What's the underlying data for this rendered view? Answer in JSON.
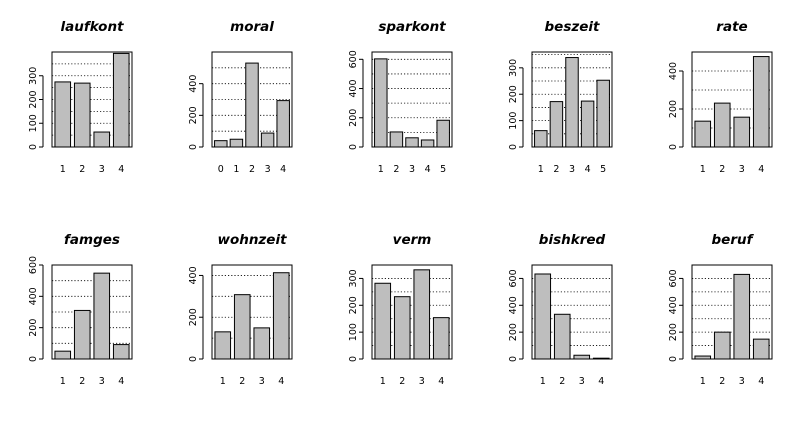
{
  "chart_data": [
    {
      "type": "bar",
      "title": "laufkont",
      "categories": [
        "1",
        "2",
        "3",
        "4"
      ],
      "values": [
        274,
        269,
        63,
        394
      ],
      "yticks": [
        0,
        100,
        200,
        300
      ],
      "ylim": [
        0,
        400
      ]
    },
    {
      "type": "bar",
      "title": "moral",
      "categories": [
        "0",
        "1",
        "2",
        "3",
        "4"
      ],
      "values": [
        40,
        49,
        530,
        88,
        293
      ],
      "yticks": [
        0,
        200,
        400
      ],
      "ylim": [
        0,
        600
      ]
    },
    {
      "type": "bar",
      "title": "sparkont",
      "categories": [
        "1",
        "2",
        "3",
        "4",
        "5"
      ],
      "values": [
        603,
        103,
        63,
        48,
        183
      ],
      "yticks": [
        0,
        200,
        400,
        600
      ],
      "ylim": [
        0,
        650
      ]
    },
    {
      "type": "bar",
      "title": "beszeit",
      "categories": [
        "1",
        "2",
        "3",
        "4",
        "5"
      ],
      "values": [
        62,
        172,
        339,
        174,
        253
      ],
      "yticks": [
        0,
        100,
        200,
        300
      ],
      "ylim": [
        0,
        360
      ]
    },
    {
      "type": "bar",
      "title": "rate",
      "categories": [
        "1",
        "2",
        "3",
        "4"
      ],
      "values": [
        136,
        231,
        157,
        476
      ],
      "yticks": [
        0,
        200,
        400
      ],
      "ylim": [
        0,
        500
      ]
    },
    {
      "type": "bar",
      "title": "famges",
      "categories": [
        "1",
        "2",
        "3",
        "4"
      ],
      "values": [
        50,
        310,
        548,
        92
      ],
      "yticks": [
        0,
        200,
        400,
        600
      ],
      "ylim": [
        0,
        600
      ]
    },
    {
      "type": "bar",
      "title": "wohnzeit",
      "categories": [
        "1",
        "2",
        "3",
        "4"
      ],
      "values": [
        130,
        308,
        149,
        413
      ],
      "yticks": [
        0,
        200,
        400
      ],
      "ylim": [
        0,
        450
      ]
    },
    {
      "type": "bar",
      "title": "verm",
      "categories": [
        "1",
        "2",
        "3",
        "4"
      ],
      "values": [
        282,
        232,
        332,
        154
      ],
      "yticks": [
        0,
        100,
        200,
        300
      ],
      "ylim": [
        0,
        350
      ]
    },
    {
      "type": "bar",
      "title": "bishkred",
      "categories": [
        "1",
        "2",
        "3",
        "4"
      ],
      "values": [
        633,
        333,
        28,
        6
      ],
      "yticks": [
        0,
        200,
        400,
        600
      ],
      "ylim": [
        0,
        700
      ]
    },
    {
      "type": "bar",
      "title": "beruf",
      "categories": [
        "1",
        "2",
        "3",
        "4"
      ],
      "values": [
        22,
        200,
        630,
        148
      ],
      "yticks": [
        0,
        200,
        400,
        600
      ],
      "ylim": [
        0,
        700
      ]
    }
  ]
}
